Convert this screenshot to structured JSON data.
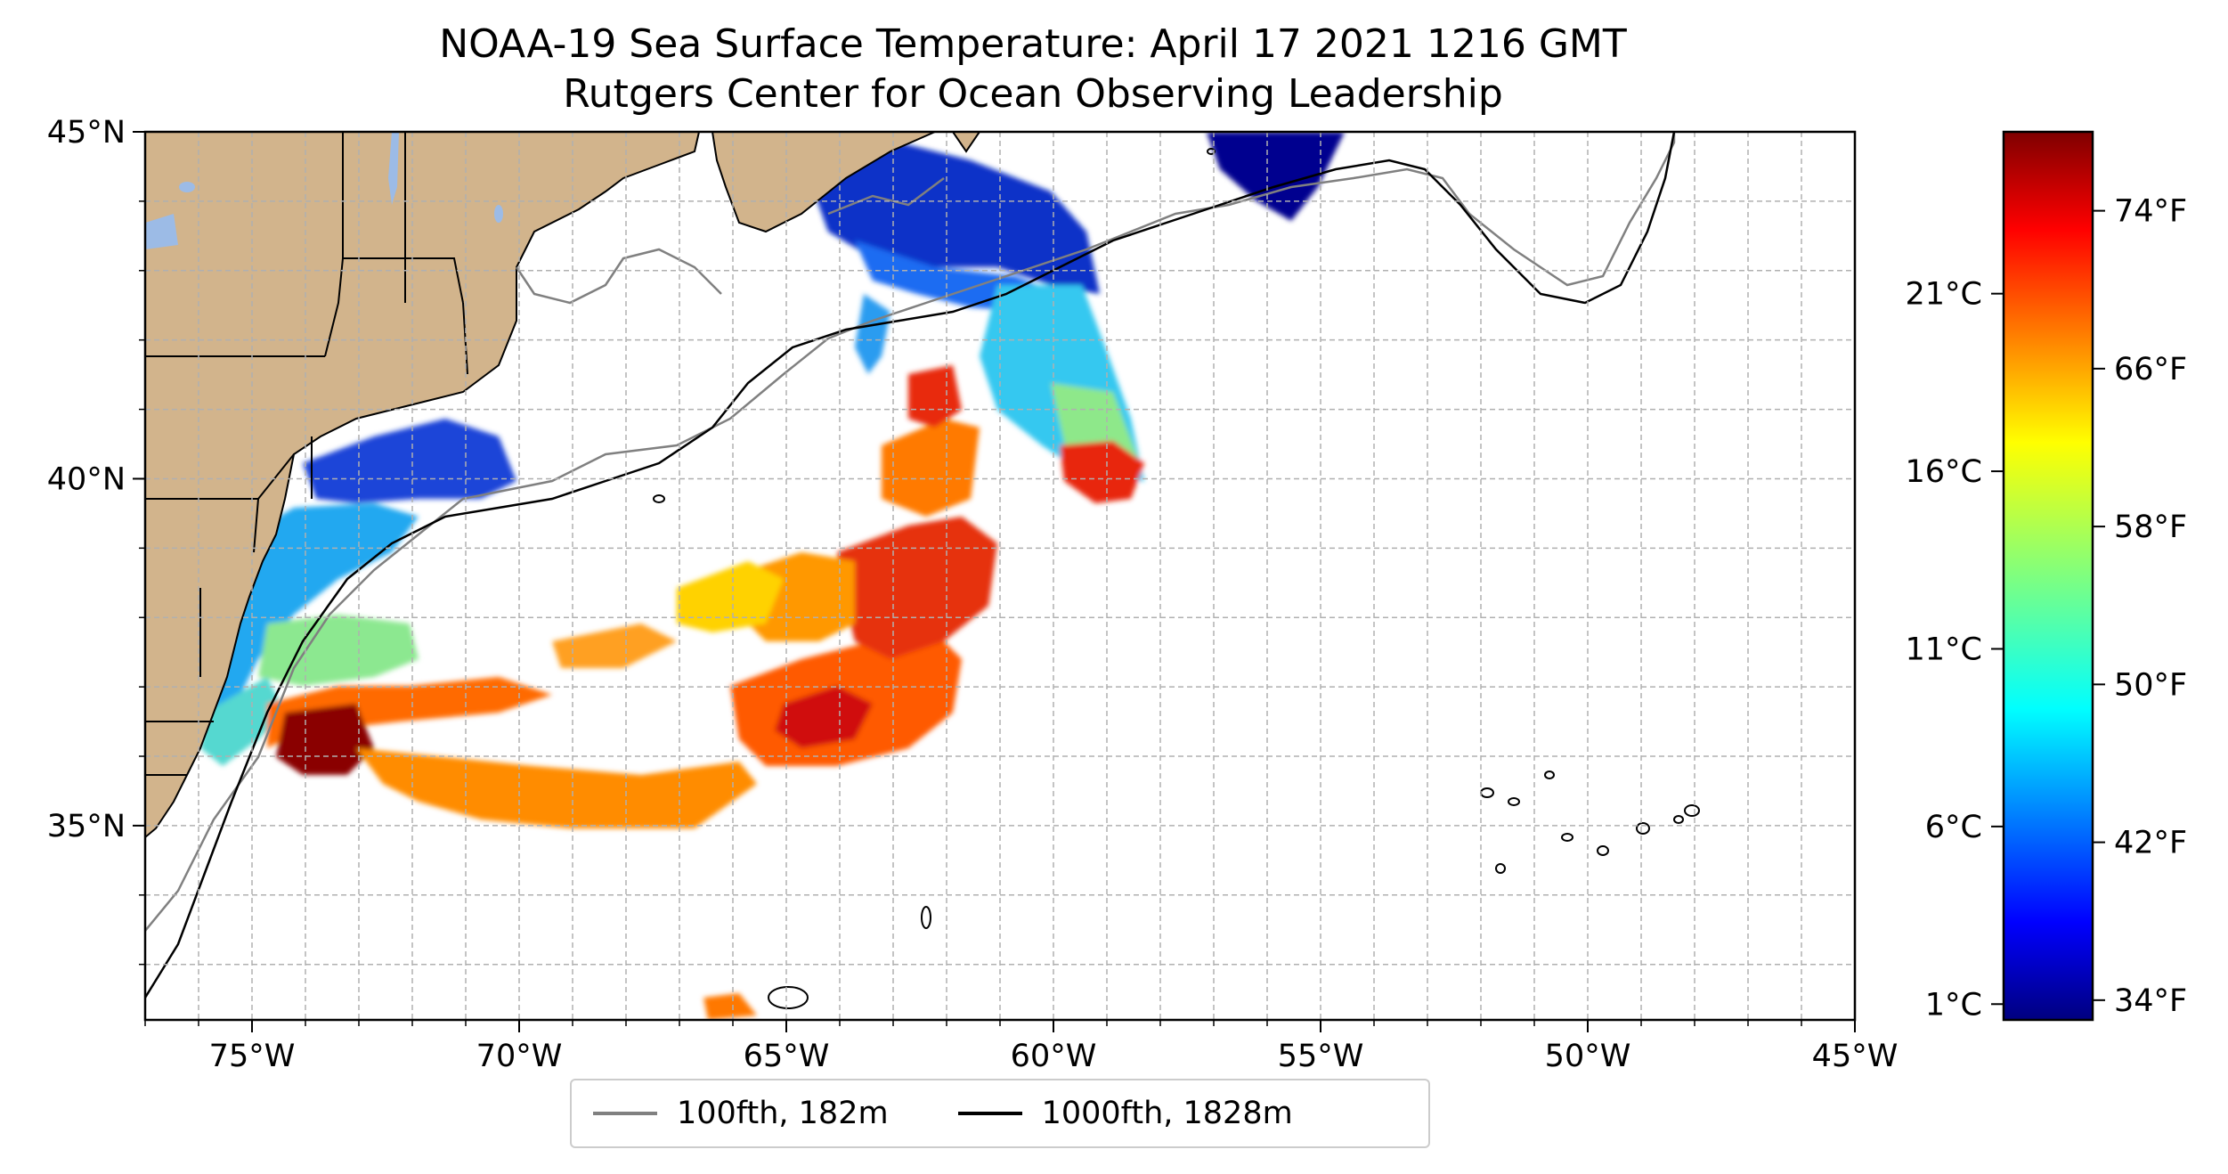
{
  "title": {
    "line1": "NOAA-19 Sea Surface Temperature: April 17 2021 1216 GMT",
    "line2": "Rutgers Center for Ocean Observing Leadership"
  },
  "map": {
    "lon_range": [
      -77,
      -45
    ],
    "lat_range": [
      32.2,
      45
    ],
    "x_ticks": [
      "75°W",
      "70°W",
      "65°W",
      "60°W",
      "55°W",
      "50°W",
      "45°W"
    ],
    "y_ticks": [
      "35°N",
      "40°N",
      "45°N"
    ],
    "land_color": "#d2b48c",
    "lake_color": "#9cbbe6",
    "gridlines": true
  },
  "colorbar": {
    "colormap": "jet",
    "celsius_labels": [
      "1°C",
      "6°C",
      "11°C",
      "16°C",
      "21°C"
    ],
    "fahrenheit_labels": [
      "34°F",
      "42°F",
      "50°F",
      "58°F",
      "66°F",
      "74°F"
    ]
  },
  "legend": {
    "items": [
      {
        "label": "100fth, 182m",
        "color": "#808080"
      },
      {
        "label": "1000fth, 1828m",
        "color": "#000000"
      }
    ]
  }
}
